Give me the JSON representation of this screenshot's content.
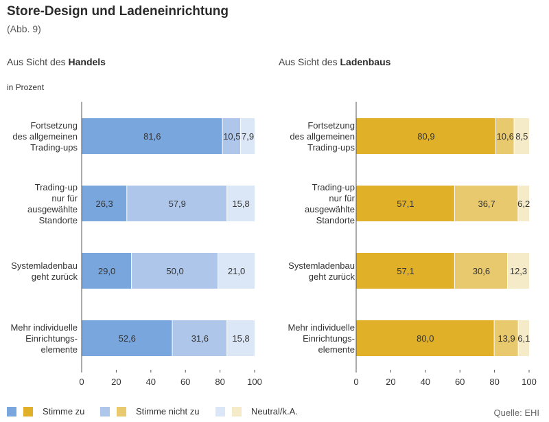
{
  "header": {
    "title": "Store-Design und Ladeneinrichtung",
    "subtitle": "(Abb. 9)",
    "unit_label": "in Prozent"
  },
  "panels": [
    {
      "prefix": "Aus Sicht des ",
      "bold": "Handels"
    },
    {
      "prefix": "Aus Sicht des ",
      "bold": "Ladenbaus"
    }
  ],
  "legend": {
    "items": [
      {
        "label": "Stimme zu",
        "colors": [
          "#7aa6de",
          "#e0b028"
        ]
      },
      {
        "label": "Stimme nicht zu",
        "colors": [
          "#aec6ea",
          "#e9c96e"
        ]
      },
      {
        "label": "Neutral/k.A.",
        "colors": [
          "#dbe6f6",
          "#f6ebc9"
        ]
      }
    ]
  },
  "source": "Quelle: EHI",
  "chart_data": [
    {
      "type": "bar",
      "orientation": "horizontal",
      "stacked": true,
      "title": "Aus Sicht des Handels",
      "categories": [
        [
          "Fortsetzung",
          "des allgemeinen",
          "Trading-ups"
        ],
        [
          "Trading-up",
          "nur für",
          "ausgewählte",
          "Standorte"
        ],
        [
          "Systemladenbau",
          "geht zurück"
        ],
        [
          "Mehr individuelle",
          "Einrichtungs-",
          "elemente"
        ]
      ],
      "series": [
        {
          "name": "Stimme zu",
          "color": "#7aa6de",
          "values": [
            81.6,
            26.3,
            29.0,
            52.6
          ],
          "labels": [
            "81,6",
            "26,3",
            "29,0",
            "52,6"
          ]
        },
        {
          "name": "Stimme nicht zu",
          "color": "#aec6ea",
          "values": [
            10.5,
            57.9,
            50.0,
            31.6
          ],
          "labels": [
            "10,5",
            "57,9",
            "50,0",
            "31,6"
          ]
        },
        {
          "name": "Neutral/k.A.",
          "color": "#dbe6f6",
          "values": [
            7.9,
            15.8,
            21.0,
            15.8
          ],
          "labels": [
            "7,9",
            "15,8",
            "21,0",
            "15,8"
          ]
        }
      ],
      "xlim": [
        0,
        100
      ],
      "xticks": [
        0,
        20,
        40,
        60,
        80,
        100
      ],
      "grid": false
    },
    {
      "type": "bar",
      "orientation": "horizontal",
      "stacked": true,
      "title": "Aus Sicht des Ladenbaus",
      "categories": [
        [
          "Fortsetzung",
          "des allgemeinen",
          "Trading-ups"
        ],
        [
          "Trading-up",
          "nur für",
          "ausgewählte",
          "Standorte"
        ],
        [
          "Systemladenbau",
          "geht zurück"
        ],
        [
          "Mehr individuelle",
          "Einrichtungs-",
          "elemente"
        ]
      ],
      "series": [
        {
          "name": "Stimme zu",
          "color": "#e0b028",
          "values": [
            80.9,
            57.1,
            57.1,
            80.0
          ],
          "labels": [
            "80,9",
            "57,1",
            "57,1",
            "80,0"
          ]
        },
        {
          "name": "Stimme nicht zu",
          "color": "#e9c96e",
          "values": [
            10.6,
            36.7,
            30.6,
            13.9
          ],
          "labels": [
            "10,6",
            "36,7",
            "30,6",
            "13,9"
          ]
        },
        {
          "name": "Neutral/k.A.",
          "color": "#f6ebc9",
          "values": [
            8.5,
            6.2,
            12.3,
            6.1
          ],
          "labels": [
            "8,5",
            "6,2",
            "12,3",
            "6,1"
          ]
        }
      ],
      "xlim": [
        0,
        100
      ],
      "xticks": [
        0,
        20,
        40,
        60,
        80,
        100
      ],
      "grid": false
    }
  ]
}
